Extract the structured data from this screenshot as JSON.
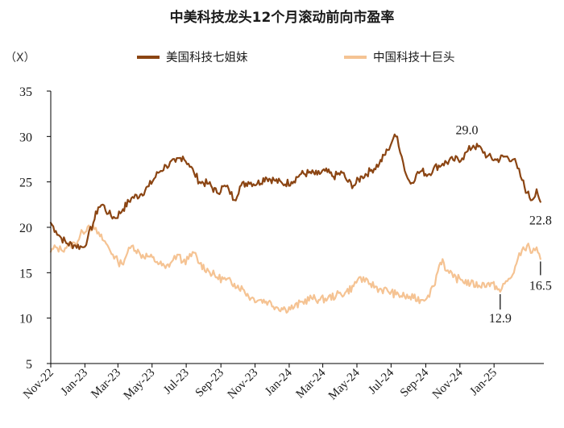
{
  "chart_data": {
    "type": "line",
    "title": "中美科技龙头12个月滚动前向市盈率",
    "unit_label": "（X）",
    "ylim": [
      5,
      35
    ],
    "yticks": [
      5,
      10,
      15,
      20,
      25,
      30,
      35
    ],
    "x_range": [
      "2022-11-01",
      "2025-03-31"
    ],
    "xtick_labels": [
      "Nov-22",
      "Jan-23",
      "Mar-23",
      "May-23",
      "Jul-23",
      "Sep-23",
      "Nov-23",
      "Jan-24",
      "Mar-24",
      "May-24",
      "Jul-24",
      "Sep-24",
      "Nov-24",
      "Jan-25"
    ],
    "xtick_dates": [
      "2022-11-01",
      "2023-01-01",
      "2023-03-01",
      "2023-05-01",
      "2023-07-01",
      "2023-09-01",
      "2023-11-01",
      "2024-01-01",
      "2024-03-01",
      "2024-05-01",
      "2024-07-01",
      "2024-09-01",
      "2024-11-01",
      "2025-01-01"
    ],
    "legend_placement": "top",
    "grid": false,
    "series": [
      {
        "name": "美国科技七姐妹",
        "color": "#8b4513",
        "points": [
          [
            "2022-11-01",
            20.5
          ],
          [
            "2022-11-10",
            19.6
          ],
          [
            "2022-11-20",
            18.8
          ],
          [
            "2022-12-01",
            18.2
          ],
          [
            "2022-12-15",
            18.0
          ],
          [
            "2022-12-29",
            17.8
          ],
          [
            "2023-01-06",
            18.8
          ],
          [
            "2023-01-16",
            20.5
          ],
          [
            "2023-01-25",
            22.2
          ],
          [
            "2023-02-02",
            22.5
          ],
          [
            "2023-02-12",
            21.5
          ],
          [
            "2023-02-24",
            21.0
          ],
          [
            "2023-03-10",
            22.0
          ],
          [
            "2023-03-25",
            23.2
          ],
          [
            "2023-04-10",
            23.6
          ],
          [
            "2023-04-25",
            24.5
          ],
          [
            "2023-05-12",
            26.0
          ],
          [
            "2023-05-26",
            26.8
          ],
          [
            "2023-06-12",
            27.2
          ],
          [
            "2023-06-25",
            27.8
          ],
          [
            "2023-07-05",
            27.0
          ],
          [
            "2023-07-15",
            26.0
          ],
          [
            "2023-07-25",
            25.0
          ],
          [
            "2023-08-10",
            24.8
          ],
          [
            "2023-08-25",
            23.8
          ],
          [
            "2023-09-05",
            24.5
          ],
          [
            "2023-09-15",
            24.2
          ],
          [
            "2023-09-25",
            23.0
          ],
          [
            "2023-10-05",
            24.5
          ],
          [
            "2023-10-20",
            25.0
          ],
          [
            "2023-11-05",
            24.8
          ],
          [
            "2023-11-20",
            25.5
          ],
          [
            "2023-12-05",
            25.2
          ],
          [
            "2023-12-20",
            24.8
          ],
          [
            "2024-01-05",
            25.0
          ],
          [
            "2024-01-20",
            25.8
          ],
          [
            "2024-02-05",
            26.0
          ],
          [
            "2024-02-20",
            25.8
          ],
          [
            "2024-03-05",
            26.2
          ],
          [
            "2024-03-20",
            25.6
          ],
          [
            "2024-04-05",
            26.0
          ],
          [
            "2024-04-15",
            25.0
          ],
          [
            "2024-04-25",
            24.6
          ],
          [
            "2024-05-10",
            25.6
          ],
          [
            "2024-05-25",
            26.2
          ],
          [
            "2024-06-10",
            27.0
          ],
          [
            "2024-06-25",
            28.5
          ],
          [
            "2024-07-05",
            29.8
          ],
          [
            "2024-07-12",
            30.0
          ],
          [
            "2024-07-20",
            27.8
          ],
          [
            "2024-07-28",
            25.8
          ],
          [
            "2024-08-05",
            24.8
          ],
          [
            "2024-08-15",
            25.8
          ],
          [
            "2024-08-25",
            26.2
          ],
          [
            "2024-09-05",
            25.8
          ],
          [
            "2024-09-15",
            26.5
          ],
          [
            "2024-10-01",
            27.0
          ],
          [
            "2024-10-20",
            27.4
          ],
          [
            "2024-11-05",
            27.6
          ],
          [
            "2024-11-15",
            28.4
          ],
          [
            "2024-11-25",
            29.0
          ],
          [
            "2024-12-10",
            28.6
          ],
          [
            "2024-12-20",
            27.8
          ],
          [
            "2025-01-05",
            27.4
          ],
          [
            "2025-01-20",
            27.8
          ],
          [
            "2025-02-05",
            27.5
          ],
          [
            "2025-02-12",
            26.5
          ],
          [
            "2025-02-20",
            25.2
          ],
          [
            "2025-03-01",
            23.8
          ],
          [
            "2025-03-10",
            23.0
          ],
          [
            "2025-03-18",
            24.2
          ],
          [
            "2025-03-25",
            22.8
          ]
        ],
        "annotations": [
          {
            "text": "29.0",
            "date": "2024-11-25",
            "value": 29.0,
            "pointer": false
          },
          {
            "text": "22.8",
            "date": "2025-03-25",
            "value": 22.8,
            "pointer": false
          }
        ]
      },
      {
        "name": "中国科技十巨头",
        "color": "#f5c393",
        "points": [
          [
            "2022-11-01",
            17.3
          ],
          [
            "2022-11-10",
            17.8
          ],
          [
            "2022-11-20",
            17.5
          ],
          [
            "2022-12-01",
            18.0
          ],
          [
            "2022-12-15",
            18.2
          ],
          [
            "2022-12-28",
            19.5
          ],
          [
            "2023-01-08",
            20.2
          ],
          [
            "2023-01-18",
            19.8
          ],
          [
            "2023-01-28",
            19.0
          ],
          [
            "2023-02-08",
            18.2
          ],
          [
            "2023-02-20",
            17.0
          ],
          [
            "2023-03-01",
            16.2
          ],
          [
            "2023-03-08",
            16.0
          ],
          [
            "2023-03-18",
            17.2
          ],
          [
            "2023-03-28",
            18.0
          ],
          [
            "2023-04-10",
            17.0
          ],
          [
            "2023-04-25",
            16.8
          ],
          [
            "2023-05-10",
            16.2
          ],
          [
            "2023-05-25",
            15.5
          ],
          [
            "2023-06-05",
            16.2
          ],
          [
            "2023-06-15",
            17.0
          ],
          [
            "2023-06-25",
            16.2
          ],
          [
            "2023-07-05",
            16.5
          ],
          [
            "2023-07-15",
            17.2
          ],
          [
            "2023-07-25",
            16.0
          ],
          [
            "2023-08-10",
            15.2
          ],
          [
            "2023-08-25",
            14.5
          ],
          [
            "2023-09-10",
            14.2
          ],
          [
            "2023-09-25",
            13.8
          ],
          [
            "2023-10-10",
            13.2
          ],
          [
            "2023-10-25",
            12.2
          ],
          [
            "2023-11-10",
            12.0
          ],
          [
            "2023-11-25",
            11.8
          ],
          [
            "2023-12-10",
            11.2
          ],
          [
            "2023-12-25",
            11.0
          ],
          [
            "2024-01-10",
            11.2
          ],
          [
            "2024-01-25",
            11.8
          ],
          [
            "2024-02-10",
            12.2
          ],
          [
            "2024-02-25",
            12.0
          ],
          [
            "2024-03-10",
            12.2
          ],
          [
            "2024-03-25",
            12.5
          ],
          [
            "2024-04-10",
            12.8
          ],
          [
            "2024-04-25",
            13.5
          ],
          [
            "2024-05-05",
            14.5
          ],
          [
            "2024-05-15",
            14.0
          ],
          [
            "2024-05-25",
            13.8
          ],
          [
            "2024-06-10",
            13.2
          ],
          [
            "2024-06-25",
            13.0
          ],
          [
            "2024-07-10",
            12.6
          ],
          [
            "2024-07-25",
            12.4
          ],
          [
            "2024-08-10",
            12.2
          ],
          [
            "2024-08-25",
            12.0
          ],
          [
            "2024-09-05",
            12.5
          ],
          [
            "2024-09-15",
            13.5
          ],
          [
            "2024-09-25",
            15.8
          ],
          [
            "2024-10-01",
            16.5
          ],
          [
            "2024-10-08",
            15.2
          ],
          [
            "2024-10-20",
            14.5
          ],
          [
            "2024-11-05",
            14.2
          ],
          [
            "2024-11-20",
            13.8
          ],
          [
            "2024-12-05",
            13.6
          ],
          [
            "2024-12-20",
            13.8
          ],
          [
            "2025-01-05",
            13.5
          ],
          [
            "2025-01-12",
            12.9
          ],
          [
            "2025-01-20",
            13.8
          ],
          [
            "2025-02-01",
            14.5
          ],
          [
            "2025-02-10",
            16.0
          ],
          [
            "2025-02-20",
            17.5
          ],
          [
            "2025-03-01",
            18.0
          ],
          [
            "2025-03-10",
            17.2
          ],
          [
            "2025-03-18",
            17.8
          ],
          [
            "2025-03-25",
            16.5
          ]
        ],
        "annotations": [
          {
            "text": "12.9",
            "date": "2025-01-12",
            "value": 12.9,
            "pointer": true
          },
          {
            "text": "16.5",
            "date": "2025-03-25",
            "value": 16.5,
            "pointer": true
          }
        ]
      }
    ]
  }
}
